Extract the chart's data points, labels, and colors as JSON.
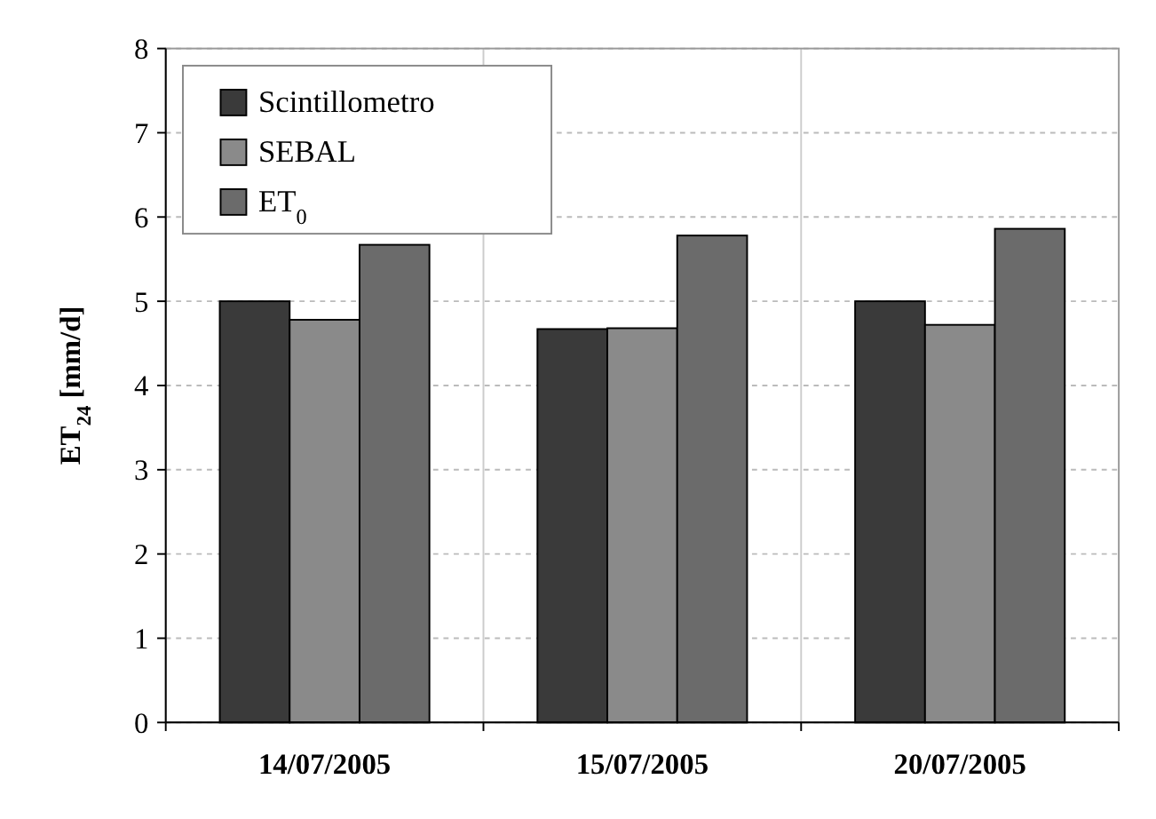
{
  "chart_data": {
    "type": "bar",
    "ylabel": "ET$_{24}$ [mm/d]",
    "categories": [
      "14/07/2005",
      "15/07/2005",
      "20/07/2005"
    ],
    "series": [
      {
        "name": "Scintillometro",
        "color": "#3a3a3a",
        "values": [
          5.0,
          4.67,
          5.0
        ]
      },
      {
        "name": "SEBAL",
        "color": "#8a8a8a",
        "values": [
          4.78,
          4.68,
          4.72
        ]
      },
      {
        "name": "ET$_{0}$",
        "color": "#6b6b6b",
        "values": [
          5.67,
          5.78,
          5.86
        ]
      }
    ],
    "ylim": [
      0,
      8
    ],
    "yticks": [
      0,
      1,
      2,
      3,
      4,
      5,
      6,
      7,
      8
    ],
    "grid": true,
    "legend": "top left"
  }
}
